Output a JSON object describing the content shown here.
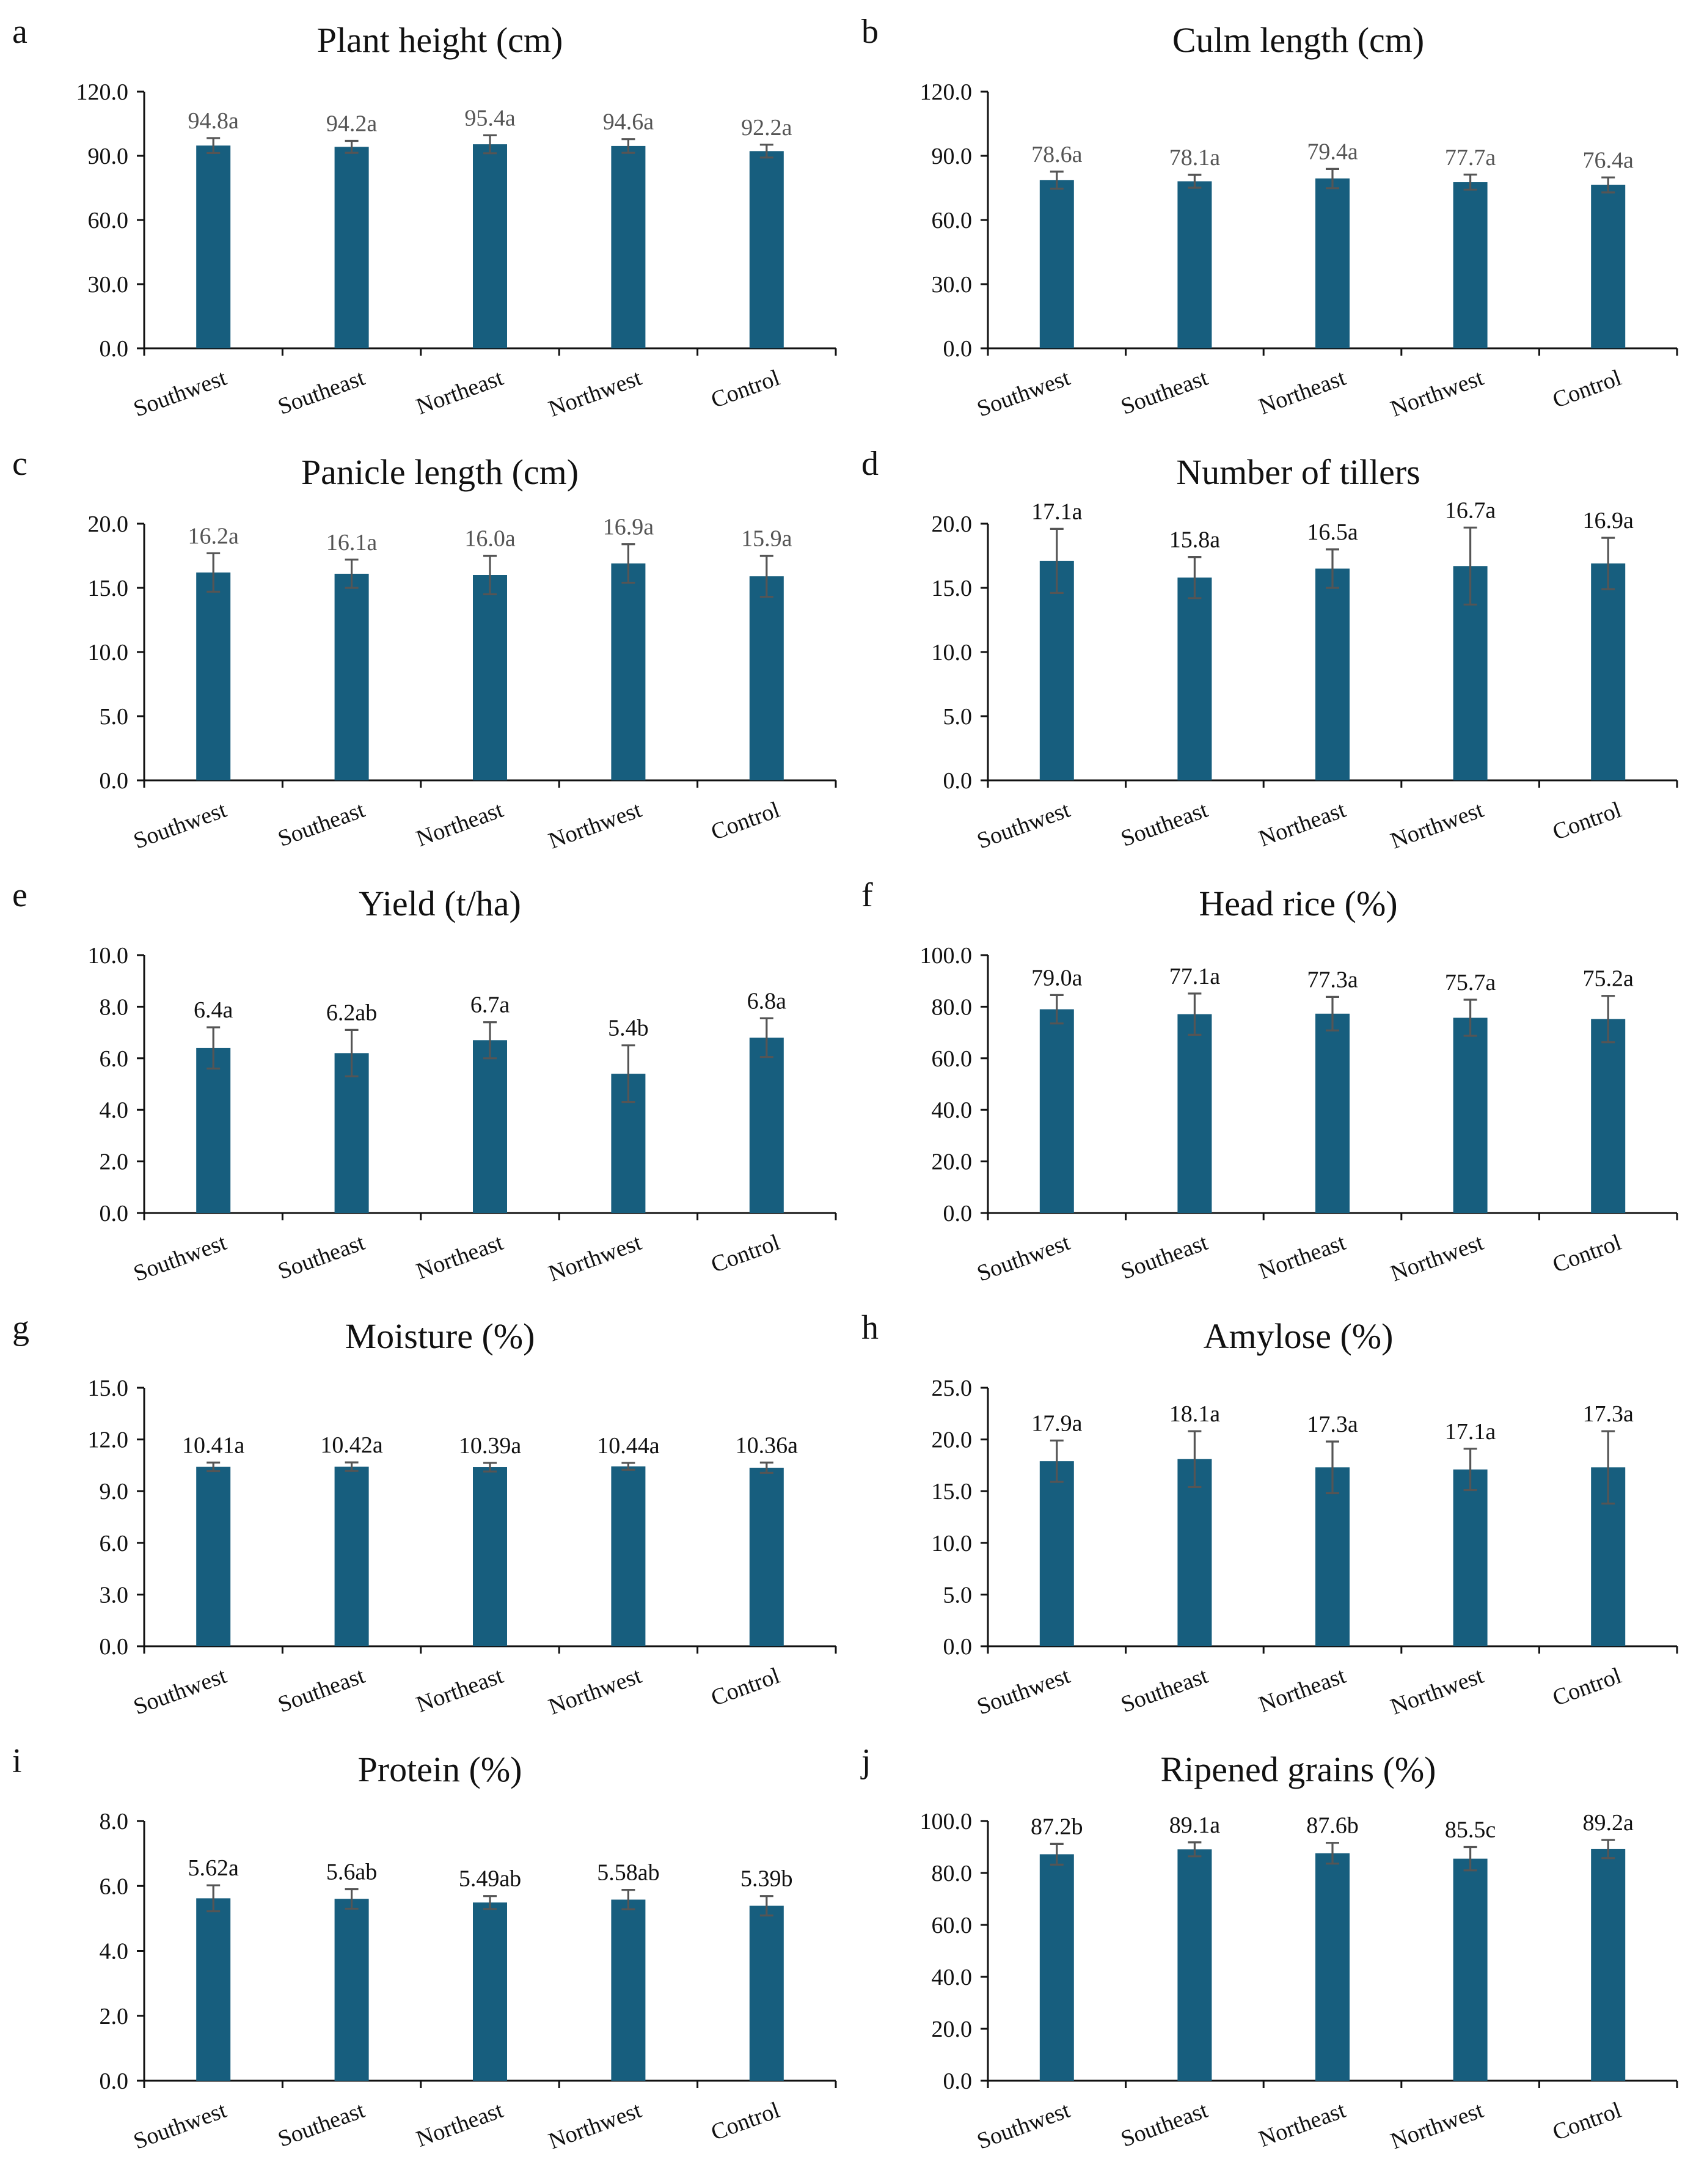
{
  "figure_colors": {
    "bar": "#175E7E",
    "error_bar": "#555555",
    "axis": "#111111"
  },
  "chart_data": [
    {
      "panel": "a",
      "type": "bar",
      "title": "Plant height (cm)",
      "categories": [
        "Southwest",
        "Southeast",
        "Northeast",
        "Northwest",
        "Control"
      ],
      "values": [
        94.8,
        94.2,
        95.4,
        94.6,
        92.2
      ],
      "errors": [
        3.5,
        2.8,
        4.2,
        3.2,
        3.0
      ],
      "labels": [
        "94.8a",
        "94.2a",
        "95.4a",
        "94.6a",
        "92.2a"
      ],
      "label_color": "gray",
      "ylim": [
        0,
        120
      ],
      "yticks": [
        "0.0",
        "30.0",
        "60.0",
        "90.0",
        "120.0"
      ],
      "xlabel": "",
      "ylabel": ""
    },
    {
      "panel": "b",
      "type": "bar",
      "title": "Culm length (cm)",
      "categories": [
        "Southwest",
        "Southeast",
        "Northeast",
        "Northwest",
        "Control"
      ],
      "values": [
        78.6,
        78.1,
        79.4,
        77.7,
        76.4
      ],
      "errors": [
        4.0,
        3.0,
        4.5,
        3.5,
        3.5
      ],
      "labels": [
        "78.6a",
        "78.1a",
        "79.4a",
        "77.7a",
        "76.4a"
      ],
      "label_color": "gray",
      "ylim": [
        0,
        120
      ],
      "yticks": [
        "0.0",
        "30.0",
        "60.0",
        "90.0",
        "120.0"
      ],
      "xlabel": "",
      "ylabel": ""
    },
    {
      "panel": "c",
      "type": "bar",
      "title": "Panicle length (cm)",
      "categories": [
        "Southwest",
        "Southeast",
        "Northeast",
        "Northwest",
        "Control"
      ],
      "values": [
        16.2,
        16.1,
        16.0,
        16.9,
        15.9
      ],
      "errors": [
        1.5,
        1.1,
        1.5,
        1.5,
        1.6
      ],
      "labels": [
        "16.2a",
        "16.1a",
        "16.0a",
        "16.9a",
        "15.9a"
      ],
      "label_color": "gray",
      "ylim": [
        0,
        20
      ],
      "yticks": [
        "0.0",
        "5.0",
        "10.0",
        "15.0",
        "20.0"
      ],
      "xlabel": "",
      "ylabel": ""
    },
    {
      "panel": "d",
      "type": "bar",
      "title": "Number of tillers",
      "categories": [
        "Southwest",
        "Southeast",
        "Northeast",
        "Northwest",
        "Control"
      ],
      "values": [
        17.1,
        15.8,
        16.5,
        16.7,
        16.9
      ],
      "errors": [
        2.5,
        1.6,
        1.5,
        3.0,
        2.0
      ],
      "labels": [
        "17.1a",
        "15.8a",
        "16.5a",
        "16.7a",
        "16.9a"
      ],
      "label_color": "dark",
      "ylim": [
        0,
        20
      ],
      "yticks": [
        "0.0",
        "5.0",
        "10.0",
        "15.0",
        "20.0"
      ],
      "xlabel": "",
      "ylabel": ""
    },
    {
      "panel": "e",
      "type": "bar",
      "title": "Yield (t/ha)",
      "categories": [
        "Southwest",
        "Southeast",
        "Northeast",
        "Northwest",
        "Control"
      ],
      "values": [
        6.4,
        6.2,
        6.7,
        5.4,
        6.8
      ],
      "errors": [
        0.8,
        0.9,
        0.7,
        1.1,
        0.75
      ],
      "labels": [
        "6.4a",
        "6.2ab",
        "6.7a",
        "5.4b",
        "6.8a"
      ],
      "label_color": "dark",
      "ylim": [
        0,
        10
      ],
      "yticks": [
        "0.0",
        "2.0",
        "4.0",
        "6.0",
        "8.0",
        "10.0"
      ],
      "xlabel": "",
      "ylabel": ""
    },
    {
      "panel": "f",
      "type": "bar",
      "title": "Head rice (%)",
      "categories": [
        "Southwest",
        "Southeast",
        "Northeast",
        "Northwest",
        "Control"
      ],
      "values": [
        79.0,
        77.1,
        77.3,
        75.7,
        75.2
      ],
      "errors": [
        5.5,
        8.0,
        6.5,
        7.0,
        9.0
      ],
      "labels": [
        "79.0a",
        "77.1a",
        "77.3a",
        "75.7a",
        "75.2a"
      ],
      "label_color": "dark",
      "ylim": [
        0,
        100
      ],
      "yticks": [
        "0.0",
        "20.0",
        "40.0",
        "60.0",
        "80.0",
        "100.0"
      ],
      "xlabel": "",
      "ylabel": ""
    },
    {
      "panel": "g",
      "type": "bar",
      "title": "Moisture (%)",
      "categories": [
        "Southwest",
        "Southeast",
        "Northeast",
        "Northwest",
        "Control"
      ],
      "values": [
        10.41,
        10.42,
        10.39,
        10.44,
        10.36
      ],
      "errors": [
        0.25,
        0.25,
        0.25,
        0.2,
        0.3
      ],
      "labels": [
        "10.41a",
        "10.42a",
        "10.39a",
        "10.44a",
        "10.36a"
      ],
      "label_color": "dark",
      "ylim": [
        0,
        15
      ],
      "yticks": [
        "0.0",
        "3.0",
        "6.0",
        "9.0",
        "12.0",
        "15.0"
      ],
      "xlabel": "",
      "ylabel": ""
    },
    {
      "panel": "h",
      "type": "bar",
      "title": "Amylose (%)",
      "categories": [
        "Southwest",
        "Southeast",
        "Northeast",
        "Northwest",
        "Control"
      ],
      "values": [
        17.9,
        18.1,
        17.3,
        17.1,
        17.3
      ],
      "errors": [
        2.0,
        2.7,
        2.5,
        2.0,
        3.5
      ],
      "labels": [
        "17.9a",
        "18.1a",
        "17.3a",
        "17.1a",
        "17.3a"
      ],
      "label_color": "dark",
      "ylim": [
        0,
        25
      ],
      "yticks": [
        "0.0",
        "5.0",
        "10.0",
        "15.0",
        "20.0",
        "25.0"
      ],
      "xlabel": "",
      "ylabel": ""
    },
    {
      "panel": "i",
      "type": "bar",
      "title": "Protein (%)",
      "categories": [
        "Southwest",
        "Southeast",
        "Northeast",
        "Northwest",
        "Control"
      ],
      "values": [
        5.62,
        5.6,
        5.49,
        5.58,
        5.39
      ],
      "errors": [
        0.4,
        0.3,
        0.2,
        0.3,
        0.3
      ],
      "labels": [
        "5.62a",
        "5.6ab",
        "5.49ab",
        "5.58ab",
        "5.39b"
      ],
      "label_color": "dark",
      "ylim": [
        0,
        8
      ],
      "yticks": [
        "0.0",
        "2.0",
        "4.0",
        "6.0",
        "8.0"
      ],
      "xlabel": "",
      "ylabel": ""
    },
    {
      "panel": "j",
      "type": "bar",
      "title": "Ripened grains (%)",
      "categories": [
        "Southwest",
        "Southeast",
        "Northeast",
        "Northwest",
        "Control"
      ],
      "values": [
        87.2,
        89.1,
        87.6,
        85.5,
        89.2
      ],
      "errors": [
        4.0,
        2.7,
        4.0,
        4.5,
        3.5
      ],
      "labels": [
        "87.2b",
        "89.1a",
        "87.6b",
        "85.5c",
        "89.2a"
      ],
      "label_color": "dark",
      "ylim": [
        0,
        100
      ],
      "yticks": [
        "0.0",
        "20.0",
        "40.0",
        "60.0",
        "80.0",
        "100.0"
      ],
      "xlabel": "",
      "ylabel": ""
    }
  ]
}
